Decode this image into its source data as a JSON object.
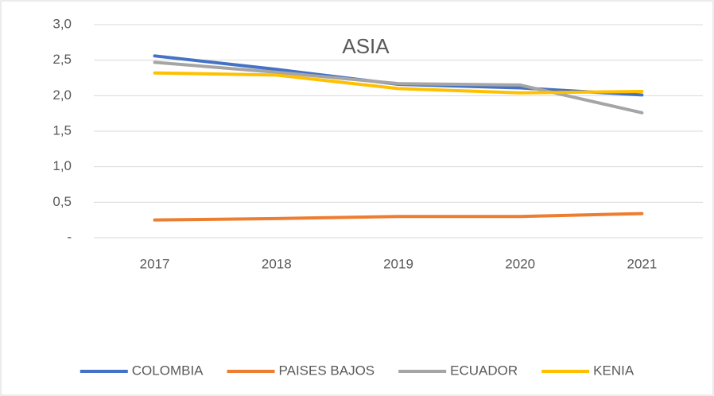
{
  "chart_data": {
    "type": "line",
    "title": "ASIA",
    "categories": [
      "2017",
      "2018",
      "2019",
      "2020",
      "2021"
    ],
    "series": [
      {
        "name": "COLOMBIA",
        "color": "#4472c4",
        "values": [
          2.56,
          2.37,
          2.16,
          2.11,
          2.01
        ]
      },
      {
        "name": "PAISES BAJOS",
        "color": "#ed7d31",
        "values": [
          0.25,
          0.27,
          0.3,
          0.3,
          0.34
        ]
      },
      {
        "name": "ECUADOR",
        "color": "#a5a5a5",
        "values": [
          2.47,
          2.33,
          2.17,
          2.15,
          1.76
        ]
      },
      {
        "name": "KENIA",
        "color": "#ffc000",
        "values": [
          2.32,
          2.29,
          2.1,
          2.04,
          2.06
        ]
      }
    ],
    "ylim": [
      0,
      3
    ],
    "yticks": [
      {
        "value": 0,
        "label": "-"
      },
      {
        "value": 0.5,
        "label": "0,5"
      },
      {
        "value": 1,
        "label": "1,0"
      },
      {
        "value": 1.5,
        "label": "1,5"
      },
      {
        "value": 2,
        "label": "2,0"
      },
      {
        "value": 2.5,
        "label": "2,5"
      },
      {
        "value": 3,
        "label": "3,0"
      }
    ],
    "grid": true,
    "legend": "bottom"
  }
}
